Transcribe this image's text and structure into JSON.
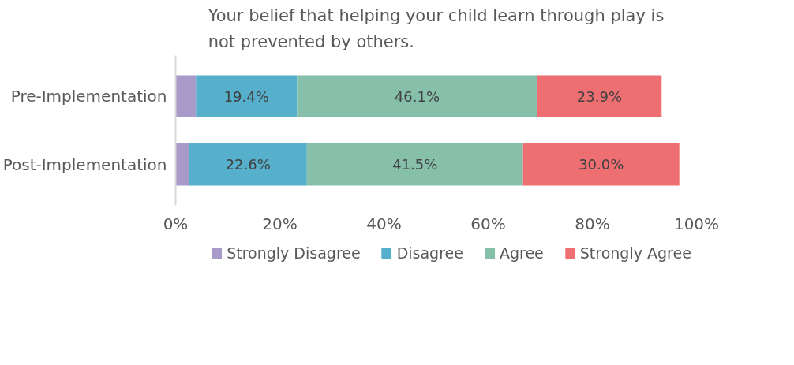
{
  "chart_data": {
    "type": "bar",
    "orientation": "horizontal",
    "stacked": true,
    "title": "Your belief that helping your child learn through play is not prevented by others.",
    "categories": [
      "Pre-Implementation",
      "Post-Implementation"
    ],
    "series": [
      {
        "name": "Strongly Disagree",
        "color": "#a99bc9",
        "values": [
          3.9,
          2.6
        ],
        "value_labels": [
          null,
          null
        ]
      },
      {
        "name": "Disagree",
        "color": "#56b0cb",
        "values": [
          19.4,
          22.6
        ],
        "value_labels": [
          "19.4%",
          "22.6%"
        ]
      },
      {
        "name": "Agree",
        "color": "#86c0aa",
        "values": [
          46.1,
          41.5
        ],
        "value_labels": [
          "46.1%",
          "41.5%"
        ]
      },
      {
        "name": "Strongly Agree",
        "color": "#ee6f72",
        "values": [
          23.9,
          30.0
        ],
        "value_labels": [
          "23.9%",
          "30.0%"
        ]
      }
    ],
    "xlim": [
      0,
      100
    ],
    "xticks": [
      {
        "value": 0,
        "label": "0%"
      },
      {
        "value": 20,
        "label": "20%"
      },
      {
        "value": 40,
        "label": "40%"
      },
      {
        "value": 60,
        "label": "60%"
      },
      {
        "value": 80,
        "label": "80%"
      },
      {
        "value": 100,
        "label": "100%"
      }
    ],
    "legend": "bottom"
  }
}
